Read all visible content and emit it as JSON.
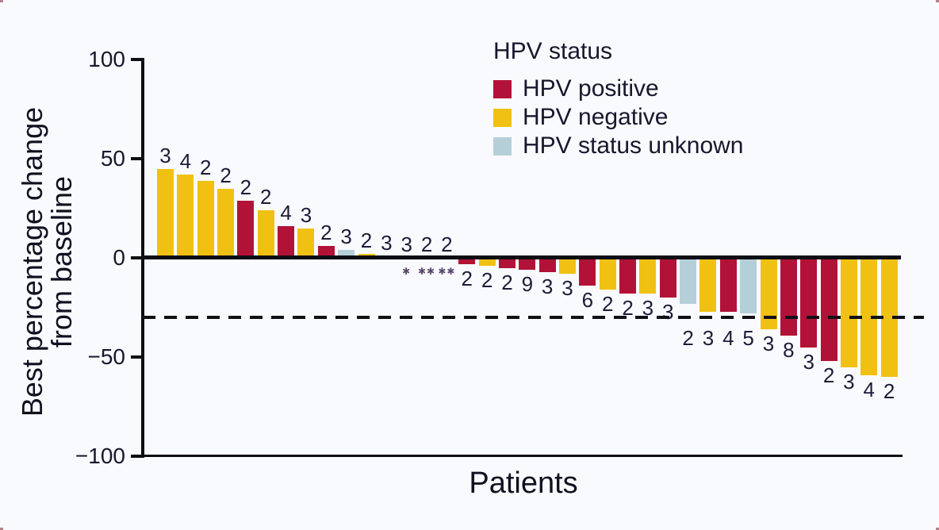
{
  "chart_data": {
    "type": "bar",
    "title": "",
    "xlabel": "Patients",
    "ylabel": "Best percentage change from baseline",
    "ylabel_lines": [
      "Best percentage change",
      "from baseline"
    ],
    "ylim": [
      -100,
      100
    ],
    "yticks": [
      100,
      50,
      0,
      -50,
      -100
    ],
    "ytick_labels": [
      "100",
      "50",
      "0",
      "−50",
      "−100"
    ],
    "grid": false,
    "reference_line_y": -30,
    "reference_line_style": "dashed",
    "legend": {
      "title": "HPV status",
      "position": "top-center-inside",
      "items": [
        {
          "key": "positive",
          "label": "HPV positive",
          "color": "#b31238"
        },
        {
          "key": "negative",
          "label": "HPV negative",
          "color": "#f0c113"
        },
        {
          "key": "unknown",
          "label": "HPV status unknown",
          "color": "#b5cfd8"
        }
      ]
    },
    "bars": [
      {
        "v": 45,
        "g": "negative",
        "n": "3"
      },
      {
        "v": 42,
        "g": "negative",
        "n": "4"
      },
      {
        "v": 39,
        "g": "negative",
        "n": "2"
      },
      {
        "v": 35,
        "g": "negative",
        "n": "2"
      },
      {
        "v": 29,
        "g": "positive",
        "n": "2"
      },
      {
        "v": 24,
        "g": "negative",
        "n": "2"
      },
      {
        "v": 16,
        "g": "positive",
        "n": "4"
      },
      {
        "v": 15,
        "g": "negative",
        "n": "3"
      },
      {
        "v": 6,
        "g": "positive",
        "n": "2"
      },
      {
        "v": 4,
        "g": "unknown",
        "n": "3"
      },
      {
        "v": 2,
        "g": "negative",
        "n": "2"
      },
      {
        "v": 1,
        "g": "positive",
        "n": "3"
      },
      {
        "v": 0,
        "g": "none",
        "n": "3",
        "stars": "✱"
      },
      {
        "v": 0,
        "g": "none",
        "n": "2",
        "stars": "✱✱"
      },
      {
        "v": 0,
        "g": "none",
        "n": "2",
        "stars": "✱✱"
      },
      {
        "v": -3,
        "g": "positive",
        "n": "2"
      },
      {
        "v": -4,
        "g": "negative",
        "n": "2"
      },
      {
        "v": -5,
        "g": "positive",
        "n": "2"
      },
      {
        "v": -6,
        "g": "positive",
        "n": "9"
      },
      {
        "v": -7,
        "g": "positive",
        "n": "3"
      },
      {
        "v": -8,
        "g": "negative",
        "n": "3"
      },
      {
        "v": -14,
        "g": "positive",
        "n": "6"
      },
      {
        "v": -16,
        "g": "negative",
        "n": "2"
      },
      {
        "v": -18,
        "g": "positive",
        "n": "2"
      },
      {
        "v": -18,
        "g": "negative",
        "n": "3"
      },
      {
        "v": -20,
        "g": "positive",
        "n": "3"
      },
      {
        "v": -23,
        "g": "unknown",
        "n": "2"
      },
      {
        "v": -27,
        "g": "negative",
        "n": "3"
      },
      {
        "v": -27,
        "g": "positive",
        "n": "4"
      },
      {
        "v": -28,
        "g": "unknown",
        "n": "5"
      },
      {
        "v": -36,
        "g": "negative",
        "n": "3"
      },
      {
        "v": -39,
        "g": "positive",
        "n": "8"
      },
      {
        "v": -45,
        "g": "positive",
        "n": "3"
      },
      {
        "v": -52,
        "g": "positive",
        "n": "2"
      },
      {
        "v": -55,
        "g": "negative",
        "n": "3"
      },
      {
        "v": -59,
        "g": "negative",
        "n": "4"
      },
      {
        "v": -60,
        "g": "negative",
        "n": "2"
      }
    ]
  }
}
